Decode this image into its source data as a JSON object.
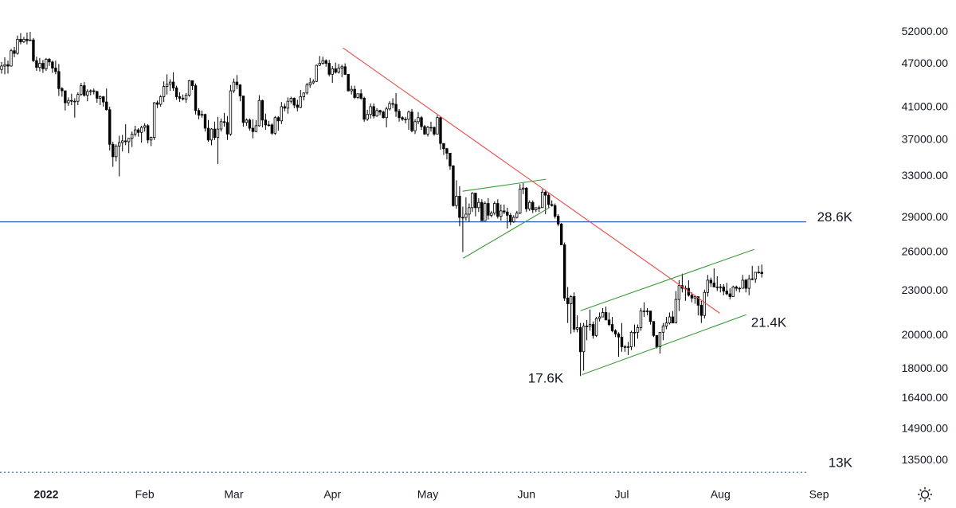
{
  "chart_data": {
    "type": "candlestick",
    "log_scale": true,
    "up_color": "#ffffff",
    "down_color": "#000000",
    "wick_color": "#000000",
    "xlim": [
      -0.5,
      265
    ],
    "ylim": [
      12780,
      57490
    ],
    "xticks": [
      {
        "value": 14,
        "label": "2022"
      },
      {
        "value": 45,
        "label": "Feb"
      },
      {
        "value": 73,
        "label": "Mar"
      },
      {
        "value": 104,
        "label": "Apr"
      },
      {
        "value": 134,
        "label": "May"
      },
      {
        "value": 165,
        "label": "Jun"
      },
      {
        "value": 195,
        "label": "Jul"
      },
      {
        "value": 226,
        "label": "Aug"
      },
      {
        "value": 257,
        "label": "Sep"
      }
    ],
    "yticks": [
      {
        "value": 52000,
        "label": "52000.00"
      },
      {
        "value": 47000,
        "label": "47000.00"
      },
      {
        "value": 41000,
        "label": "41000.00"
      },
      {
        "value": 37000,
        "label": "37000.00"
      },
      {
        "value": 33000,
        "label": "33000.00"
      },
      {
        "value": 29000,
        "label": "29000.00"
      },
      {
        "value": 26000,
        "label": "26000.00"
      },
      {
        "value": 23000,
        "label": "23000.00"
      },
      {
        "value": 20000,
        "label": "20000.00"
      },
      {
        "value": 18000,
        "label": "18000.00"
      },
      {
        "value": 16400,
        "label": "16400.00"
      },
      {
        "value": 14900,
        "label": "14900.00"
      },
      {
        "value": 13500,
        "label": "13500.00"
      }
    ],
    "x": [
      0,
      1,
      2,
      3,
      4,
      5,
      6,
      7,
      8,
      9,
      10,
      11,
      12,
      13,
      14,
      15,
      16,
      17,
      18,
      19,
      20,
      21,
      22,
      23,
      24,
      25,
      26,
      27,
      28,
      29,
      30,
      31,
      32,
      33,
      34,
      35,
      36,
      37,
      38,
      39,
      40,
      41,
      42,
      43,
      44,
      45,
      46,
      47,
      48,
      49,
      50,
      51,
      52,
      53,
      54,
      55,
      56,
      57,
      58,
      59,
      60,
      61,
      62,
      63,
      64,
      65,
      66,
      67,
      68,
      69,
      70,
      71,
      72,
      73,
      74,
      75,
      76,
      77,
      78,
      79,
      80,
      81,
      82,
      83,
      84,
      85,
      86,
      87,
      88,
      89,
      90,
      91,
      92,
      93,
      94,
      95,
      96,
      97,
      98,
      99,
      100,
      101,
      102,
      103,
      104,
      105,
      106,
      107,
      108,
      109,
      110,
      111,
      112,
      113,
      114,
      115,
      116,
      117,
      118,
      119,
      120,
      121,
      122,
      123,
      124,
      125,
      126,
      127,
      128,
      129,
      130,
      131,
      132,
      133,
      134,
      135,
      136,
      137,
      138,
      139,
      140,
      141,
      142,
      143,
      144,
      145,
      146,
      147,
      148,
      149,
      150,
      151,
      152,
      153,
      154,
      155,
      156,
      157,
      158,
      159,
      160,
      161,
      162,
      163,
      164,
      165,
      166,
      167,
      168,
      169,
      170,
      171,
      172,
      173,
      174,
      175,
      176,
      177,
      178,
      179,
      180,
      181,
      182,
      183,
      184,
      185,
      186,
      187,
      188,
      189,
      190,
      191,
      192,
      193,
      194,
      195,
      196,
      197,
      198,
      199,
      200,
      201,
      202,
      203,
      204,
      205,
      206,
      207,
      208,
      209,
      210,
      211,
      212,
      213,
      214,
      215,
      216,
      217,
      218,
      219,
      220,
      221,
      222,
      223,
      224,
      225,
      226,
      227,
      228,
      229,
      230,
      231,
      232,
      233,
      234,
      235,
      236,
      237,
      238,
      239
    ],
    "open": [
      46200,
      46700,
      46900,
      46700,
      49000,
      48600,
      50800,
      50400,
      50800,
      50600,
      50700,
      47500,
      46500,
      47100,
      46300,
      47700,
      47300,
      46400,
      45900,
      43500,
      43200,
      41600,
      41900,
      41800,
      41800,
      42700,
      43900,
      42600,
      43100,
      43200,
      43100,
      42200,
      42400,
      41700,
      40700,
      36500,
      35100,
      36300,
      36700,
      36900,
      36800,
      37200,
      37700,
      38200,
      37900,
      38500,
      38700,
      37000,
      37300,
      41600,
      41400,
      42400,
      43800,
      44100,
      44400,
      43600,
      42400,
      42200,
      42100,
      42600,
      44600,
      43900,
      40600,
      40000,
      40100,
      38400,
      37000,
      38300,
      37300,
      38300,
      39200,
      39100,
      37700,
      43200,
      44400,
      44000,
      42500,
      39100,
      39400,
      38400,
      38000,
      38700,
      41900,
      39400,
      38800,
      38800,
      37800,
      39700,
      39300,
      41100,
      40900,
      41800,
      42200,
      41300,
      41000,
      42400,
      42900,
      44000,
      44300,
      44500,
      46800,
      47100,
      47500,
      47100,
      45500,
      46300,
      45800,
      46400,
      46600,
      45500,
      43200,
      43400,
      42300,
      42800,
      42200,
      39500,
      40100,
      41100,
      39900,
      40600,
      40400,
      39700,
      40800,
      41500,
      41400,
      40500,
      39700,
      39500,
      39500,
      40400,
      38100,
      39200,
      39700,
      38600,
      37700,
      38500,
      38500,
      37700,
      39700,
      36600,
      36000,
      35500,
      34100,
      30100,
      31000,
      29000,
      29000,
      29300,
      29900,
      31300,
      29900,
      30400,
      28700,
      30300,
      29200,
      29400,
      30300,
      29100,
      29600,
      29500,
      29200,
      28600,
      29000,
      29400,
      31700,
      31800,
      29800,
      30400,
      29700,
      29900,
      29900,
      31400,
      31100,
      30200,
      30100,
      29100,
      28400,
      26600,
      22500,
      22100,
      22600,
      20400,
      20500,
      19000,
      20600,
      20600,
      20700,
      20000,
      21100,
      21200,
      21500,
      21000,
      20700,
      20300,
      20100,
      19900,
      19300,
      19300,
      19300,
      20200,
      20200,
      20500,
      21600,
      21600,
      21600,
      20900,
      20000,
      19300,
      20200,
      20600,
      20800,
      21200,
      20800,
      22400,
      23400,
      23200,
      23200,
      22700,
      22500,
      22600,
      22000,
      21300,
      22900,
      23800,
      23600,
      23300,
      23300,
      23300,
      23000,
      22800,
      22600,
      23300,
      23200,
      23200,
      23800,
      23200,
      23900,
      23900,
      24400,
      24400
    ],
    "high": [
      47300,
      48000,
      47500,
      49300,
      49600,
      51400,
      51800,
      51200,
      51900,
      52000,
      51000,
      48100,
      47900,
      47600,
      47900,
      47900,
      47500,
      47500,
      47000,
      43700,
      43200,
      42300,
      42800,
      42200,
      43000,
      44300,
      44400,
      43400,
      43400,
      43500,
      43200,
      42600,
      42500,
      43500,
      41100,
      36800,
      36500,
      37500,
      37600,
      38900,
      37200,
      38000,
      38700,
      38400,
      38700,
      39000,
      38900,
      37400,
      41700,
      41900,
      42600,
      44500,
      45500,
      44800,
      45800,
      43900,
      43000,
      42700,
      42900,
      44700,
      44600,
      44200,
      40900,
      40600,
      40200,
      39400,
      38400,
      39200,
      39800,
      39600,
      40300,
      39900,
      44000,
      44900,
      45400,
      44100,
      42500,
      39600,
      39600,
      39500,
      39400,
      42600,
      42000,
      40200,
      39300,
      39000,
      39900,
      39900,
      41700,
      41500,
      42300,
      42400,
      42300,
      42000,
      43300,
      43000,
      44300,
      45000,
      44800,
      46900,
      48200,
      48100,
      47700,
      47600,
      46700,
      47200,
      47000,
      46900,
      47100,
      45500,
      43900,
      43900,
      42800,
      43400,
      42400,
      40700,
      41500,
      41500,
      40900,
      40700,
      40600,
      41100,
      41800,
      42200,
      42900,
      40800,
      39900,
      39800,
      40600,
      40800,
      39500,
      40400,
      39900,
      38800,
      38700,
      39200,
      38600,
      40000,
      39800,
      36600,
      36100,
      35500,
      34200,
      32600,
      32000,
      30000,
      30900,
      30300,
      31400,
      31300,
      30800,
      30700,
      30500,
      30800,
      29600,
      30500,
      30700,
      30200,
      30200,
      29900,
      29400,
      29200,
      29600,
      32200,
      32300,
      31900,
      30600,
      30600,
      29900,
      30100,
      31700,
      31600,
      31300,
      30600,
      30300,
      29300,
      28500,
      26800,
      23300,
      22700,
      22900,
      21300,
      20800,
      20800,
      21000,
      21700,
      20900,
      21200,
      21500,
      21800,
      21900,
      21500,
      21200,
      20400,
      20200,
      20800,
      19400,
      19600,
      20300,
      20700,
      20700,
      21800,
      22200,
      21800,
      21600,
      20900,
      20000,
      20200,
      20800,
      21200,
      21500,
      21600,
      23000,
      23800,
      24300,
      23400,
      23800,
      22900,
      22700,
      22600,
      22300,
      23100,
      24200,
      24000,
      24700,
      24100,
      23500,
      23500,
      23600,
      23200,
      23400,
      23400,
      23300,
      24200,
      23900,
      24200,
      24900,
      24400,
      24900,
      25000
    ],
    "low": [
      45600,
      45500,
      45600,
      46600,
      48000,
      48400,
      50000,
      50200,
      50000,
      50500,
      47300,
      46000,
      45900,
      45700,
      46000,
      46700,
      45700,
      45500,
      42500,
      42400,
      40600,
      41200,
      41300,
      39700,
      41300,
      42500,
      42400,
      41800,
      42600,
      42700,
      41600,
      41300,
      41100,
      40600,
      35800,
      34000,
      34600,
      33000,
      35700,
      36400,
      35500,
      36200,
      37400,
      37400,
      36700,
      38000,
      36600,
      36300,
      37000,
      40900,
      41100,
      41700,
      42700,
      43200,
      43200,
      42000,
      41700,
      41900,
      41600,
      42400,
      43300,
      40100,
      39500,
      39700,
      38000,
      36800,
      36400,
      37000,
      34300,
      38000,
      38600,
      37000,
      37500,
      42900,
      43400,
      41800,
      38600,
      38700,
      38100,
      37200,
      37900,
      38600,
      38500,
      38200,
      38600,
      37600,
      37600,
      38100,
      38900,
      40500,
      40200,
      41500,
      40900,
      40500,
      40900,
      41900,
      42700,
      43600,
      44100,
      44400,
      46700,
      46900,
      46600,
      45200,
      44300,
      45600,
      45600,
      45100,
      45400,
      43100,
      42700,
      42100,
      42100,
      42000,
      39200,
      39300,
      39600,
      39600,
      39800,
      40000,
      39600,
      38500,
      40600,
      40900,
      39800,
      39200,
      39300,
      39000,
      38200,
      37900,
      37700,
      38900,
      38200,
      37600,
      37400,
      38000,
      37500,
      37700,
      35900,
      35300,
      34800,
      33700,
      30000,
      29800,
      28200,
      26000,
      28700,
      28600,
      29500,
      29100,
      29500,
      28700,
      28700,
      28800,
      29000,
      29200,
      28900,
      28700,
      29300,
      28000,
      28300,
      28500,
      28900,
      29300,
      31200,
      29500,
      29600,
      29400,
      29500,
      29500,
      29900,
      29300,
      29900,
      30000,
      28900,
      28200,
      26600,
      22300,
      20800,
      20100,
      20200,
      20200,
      17600,
      17900,
      19700,
      20300,
      19800,
      19900,
      20900,
      21200,
      21000,
      20600,
      20200,
      19900,
      18700,
      19000,
      19000,
      18800,
      19100,
      19300,
      19800,
      20300,
      21200,
      21300,
      20700,
      19900,
      19200,
      18900,
      19700,
      20400,
      20700,
      20800,
      20800,
      21600,
      22900,
      22300,
      22600,
      22200,
      22100,
      21300,
      20800,
      21100,
      22600,
      23300,
      23300,
      23000,
      22900,
      22700,
      22700,
      22400,
      22600,
      23000,
      22900,
      23200,
      22900,
      22700,
      23800,
      23600,
      24300,
      24000
    ],
    "close": [
      46700,
      46900,
      46700,
      49000,
      48600,
      50800,
      50400,
      50800,
      50600,
      50700,
      47500,
      46500,
      47100,
      46300,
      47700,
      47300,
      46400,
      45900,
      43500,
      43200,
      41600,
      41900,
      41800,
      41800,
      42700,
      43900,
      42600,
      43100,
      43200,
      43100,
      42200,
      42400,
      41700,
      40700,
      36500,
      35100,
      36300,
      36700,
      36900,
      36800,
      37200,
      37700,
      38200,
      37900,
      38500,
      38700,
      37000,
      37300,
      41600,
      41400,
      42400,
      43800,
      44100,
      44400,
      43600,
      42400,
      42200,
      42100,
      42600,
      44600,
      43900,
      40600,
      40000,
      40100,
      38400,
      37000,
      38300,
      37300,
      38300,
      39200,
      39100,
      37700,
      43200,
      44400,
      44000,
      42500,
      39100,
      39400,
      38400,
      38000,
      38700,
      41900,
      39400,
      38800,
      38800,
      37800,
      39700,
      39300,
      41100,
      40900,
      41800,
      42200,
      41300,
      41000,
      42400,
      42900,
      44000,
      44300,
      44500,
      46800,
      47100,
      47500,
      47100,
      45500,
      46300,
      45800,
      46400,
      46600,
      45500,
      43200,
      43400,
      42300,
      42800,
      42200,
      39500,
      40100,
      41100,
      39900,
      40600,
      40400,
      39700,
      40800,
      41500,
      41400,
      40500,
      39700,
      39500,
      39500,
      40400,
      38100,
      39200,
      39700,
      38600,
      37700,
      38500,
      38500,
      37700,
      39700,
      36600,
      36000,
      35500,
      34100,
      30100,
      31000,
      29000,
      29000,
      29300,
      29900,
      31300,
      29900,
      30400,
      28700,
      30300,
      29200,
      29400,
      30300,
      29100,
      29600,
      29500,
      29200,
      28600,
      29000,
      29400,
      31700,
      31800,
      29800,
      30400,
      29700,
      29900,
      29900,
      31400,
      31100,
      30200,
      30100,
      29100,
      28400,
      26600,
      22500,
      22100,
      22600,
      20400,
      20500,
      19000,
      20600,
      20600,
      20700,
      20000,
      21100,
      21200,
      21500,
      21000,
      20700,
      20300,
      20100,
      19900,
      19300,
      19300,
      19300,
      20200,
      20200,
      20500,
      21600,
      21600,
      21600,
      20900,
      20000,
      19300,
      20200,
      20600,
      20800,
      21200,
      20800,
      22400,
      23400,
      23200,
      23200,
      22700,
      22500,
      22600,
      22000,
      21300,
      22900,
      23800,
      23600,
      23300,
      23300,
      23300,
      23000,
      22800,
      22600,
      23300,
      23200,
      23200,
      23800,
      23200,
      23900,
      23900,
      24400,
      24400,
      24300
    ],
    "hlines": [
      {
        "value": 28600,
        "label": "28.6K",
        "color": "#2f5cc4",
        "style": "solid"
      },
      {
        "value": 13000,
        "label": "13K",
        "color": "#2f5cc4",
        "style": "dotted"
      }
    ],
    "trendlines": [
      {
        "color": "#e84a4a",
        "x": [
          107.3,
          225.8
        ],
        "y": [
          49450,
          21450
        ]
      },
      {
        "color": "#3a9a3a",
        "x": [
          144.9,
          171.2
        ],
        "y": [
          31490,
          32700
        ]
      },
      {
        "color": "#3a9a3a",
        "x": [
          145.1,
          172.4
        ],
        "y": [
          25500,
          29940
        ]
      },
      {
        "color": "#3a9a3a",
        "x": [
          182.0,
          236.6
        ],
        "y": [
          21620,
          26220
        ]
      },
      {
        "color": "#3a9a3a",
        "x": [
          182.5,
          234.1
        ],
        "y": [
          17680,
          21350
        ]
      }
    ],
    "annotations": [
      {
        "text": "17.6K",
        "color": "#2e8b2e"
      },
      {
        "text": "21.4K",
        "color": "#2e8b2e"
      }
    ]
  }
}
